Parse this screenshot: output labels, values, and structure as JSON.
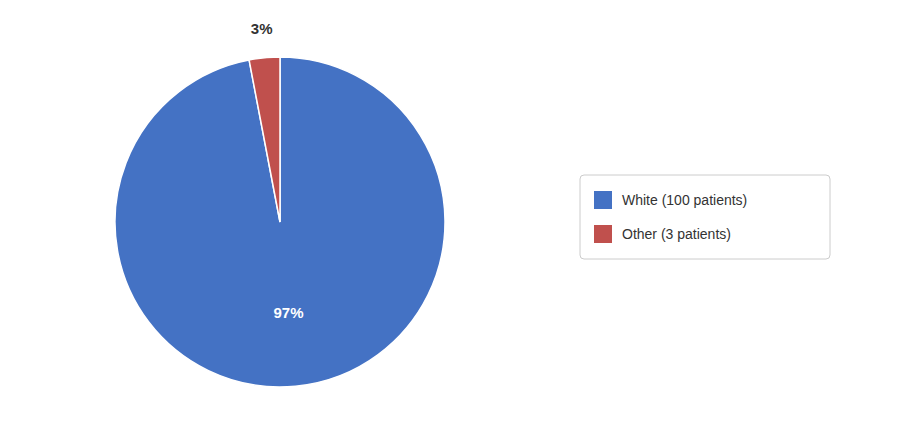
{
  "chart_data": {
    "type": "pie",
    "categories": [
      "White (100 patients)",
      "Other (3 patients)"
    ],
    "values": [
      97,
      3
    ],
    "value_labels": [
      "97%",
      "3%"
    ],
    "colors": [
      "#4472C4",
      "#C0504D"
    ],
    "data_labels": true,
    "legend": "right"
  }
}
